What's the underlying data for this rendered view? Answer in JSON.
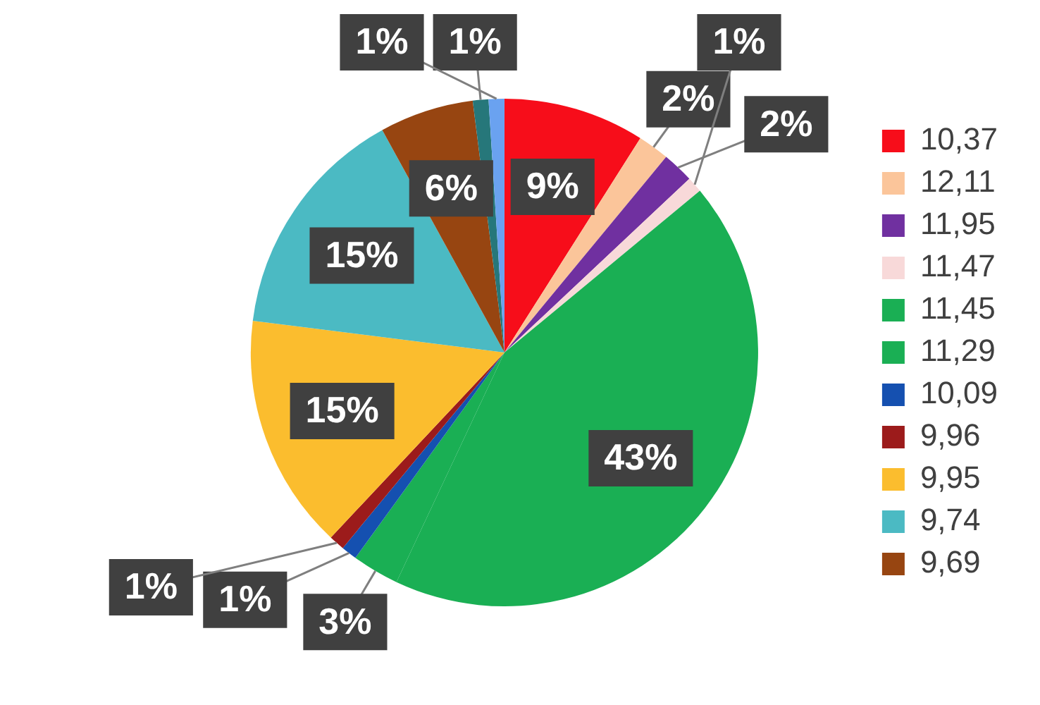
{
  "chart_data": {
    "type": "pie",
    "categories": [
      "10,37",
      "12,11",
      "11,95",
      "11,47",
      "11,45",
      "11,29",
      "10,09",
      "9,96",
      "9,95",
      "9,74",
      "9,69",
      null,
      null
    ],
    "values": [
      9,
      2,
      2,
      1,
      43,
      3,
      1,
      1,
      15,
      15,
      6,
      1,
      1
    ],
    "colors": [
      "#f70d1a",
      "#fbc59a",
      "#7030a0",
      "#f8d9d9",
      "#1aaf54",
      "#1aaf54",
      "#1550b0",
      "#9c1b1b",
      "#fbbd2e",
      "#4bbac3",
      "#974511",
      "#26777a",
      "#6aa2f0"
    ],
    "value_labels": [
      "9%",
      "2%",
      "2%",
      "1%",
      "43%",
      "3%",
      "1%",
      "1%",
      "15%",
      "15%",
      "6%",
      "1%",
      "1%"
    ],
    "legend": "right"
  }
}
